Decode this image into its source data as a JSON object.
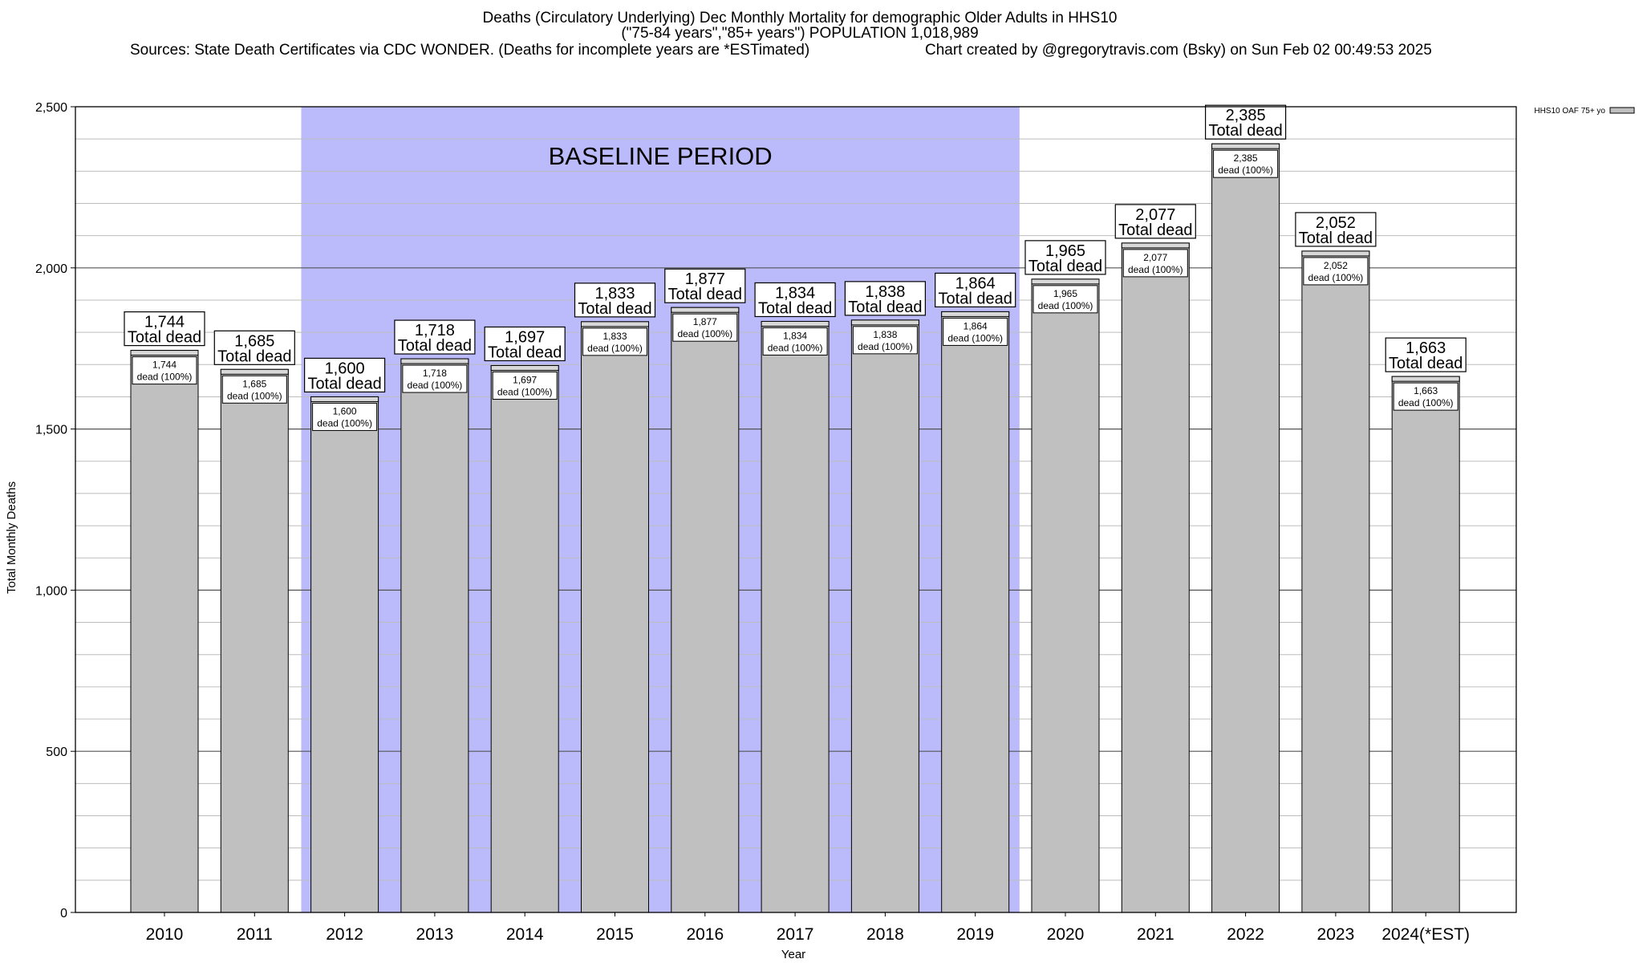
{
  "header": {
    "title_line1": "Deaths (Circulatory Underlying) Dec Monthly Mortality for demographic Older Adults in HHS10",
    "title_line2": "(\"75-84 years\",\"85+ years\") POPULATION 1,018,989",
    "sources": "Sources: State Death Certificates via CDC WONDER. (Deaths for incomplete years are *ESTimated)",
    "credit": "Chart created by @gregorytravis.com (Bsky) on Sun Feb 02 00:49:53 2025"
  },
  "chart_data": {
    "type": "bar",
    "categories": [
      "2010",
      "2011",
      "2012",
      "2013",
      "2014",
      "2015",
      "2016",
      "2017",
      "2018",
      "2019",
      "2020",
      "2021",
      "2022",
      "2023",
      "2024(*EST)"
    ],
    "series": [
      {
        "name": "HHS10 OAF 75+ yo",
        "values": [
          1744,
          1685,
          1600,
          1718,
          1697,
          1833,
          1877,
          1834,
          1838,
          1864,
          1965,
          2077,
          2385,
          2052,
          1663
        ]
      }
    ],
    "value_labels": [
      "1,744",
      "1,685",
      "1,600",
      "1,718",
      "1,697",
      "1,833",
      "1,877",
      "1,834",
      "1,838",
      "1,864",
      "1,965",
      "2,077",
      "2,385",
      "2,052",
      "1,663"
    ],
    "top_label_suffix": "Total dead",
    "inner_label_suffix": "dead (100%)",
    "xlabel": "Year",
    "ylabel": "Total Monthly Deaths",
    "ylim": [
      0,
      2500
    ],
    "yticks": [
      0,
      500,
      1000,
      1500,
      2000,
      2500
    ],
    "ytick_labels": [
      "0",
      "500",
      "1,000",
      "1,500",
      "2,000",
      "2,500"
    ],
    "grid": true,
    "legend_position": "top-right",
    "bar_color": "#c0c0c0",
    "baseline": {
      "label": "BASELINE PERIOD",
      "start": "2012",
      "end": "2019",
      "color": "#bbbbfb"
    }
  }
}
